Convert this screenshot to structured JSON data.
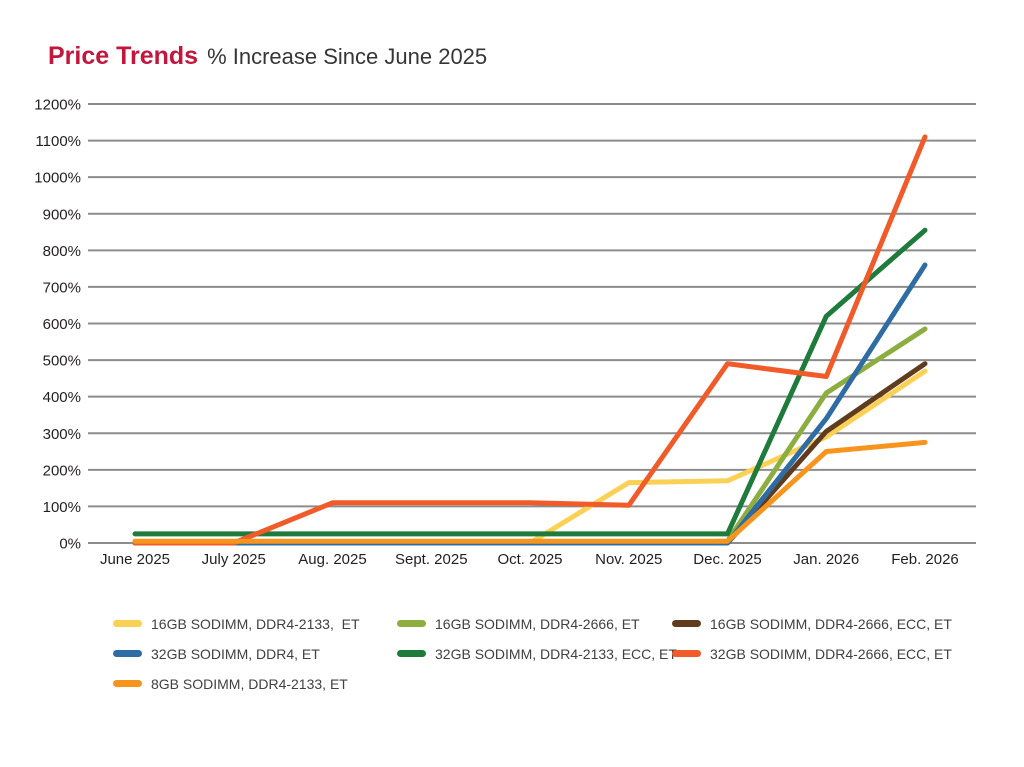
{
  "header": {
    "title": "Price Trends",
    "subtitle": "% Increase Since June 2025"
  },
  "chart_data": {
    "type": "line",
    "title": "Price Trends % Increase Since June 2025",
    "xlabel": "",
    "ylabel": "% increase since June 2025",
    "ylim": [
      0,
      1200
    ],
    "grid": true,
    "legend_position": "bottom-left",
    "categories": [
      "June 2025",
      "July 2025",
      "Aug. 2025",
      "Sept. 2025",
      "Oct. 2025",
      "Nov. 2025",
      "Dec. 2025",
      "Jan. 2026",
      "Feb. 2026"
    ],
    "y_ticks": [
      "0%",
      "100%",
      "200%",
      "300%",
      "400%",
      "500%",
      "600%",
      "700%",
      "800%",
      "900%",
      "1000%",
      "1100%",
      "1200%"
    ],
    "series": [
      {
        "name": "16GB SODIMM, DDR4-2133,  ET",
        "color": "#FBD155",
        "values": [
          0,
          0,
          0,
          0,
          0,
          165,
          170,
          290,
          470
        ]
      },
      {
        "name": "16GB SODIMM, DDR4-2666, ET",
        "color": "#8CAD3F",
        "values": [
          0,
          0,
          0,
          0,
          0,
          0,
          5,
          410,
          585
        ]
      },
      {
        "name": "16GB SODIMM, DDR4-2666, ECC, ET",
        "color": "#603C1E",
        "values": [
          0,
          0,
          0,
          0,
          0,
          0,
          0,
          305,
          490
        ]
      },
      {
        "name": "32GB SODIMM, DDR4, ET",
        "color": "#2F6CA3",
        "values": [
          0,
          0,
          0,
          0,
          0,
          0,
          0,
          340,
          760
        ]
      },
      {
        "name": "32GB SODIMM, DDR4-2133, ECC, ET",
        "color": "#1E7B3C",
        "values": [
          25,
          25,
          25,
          25,
          25,
          25,
          25,
          620,
          855
        ]
      },
      {
        "name": "32GB SODIMM, DDR4-2666, ECC, ET",
        "color": "#F15A29",
        "values": [
          0,
          0,
          110,
          110,
          110,
          103,
          490,
          455,
          1110
        ]
      },
      {
        "name": "8GB SODIMM, DDR4-2133, ET",
        "color": "#F7941E",
        "values": [
          5,
          5,
          5,
          5,
          5,
          5,
          5,
          250,
          275
        ]
      }
    ],
    "colors": {
      "grid": "#8C8C8C",
      "axis_text": "#231F20",
      "legend_text": "#414042",
      "title_accent": "#C2163C",
      "title_text": "#363636"
    }
  }
}
